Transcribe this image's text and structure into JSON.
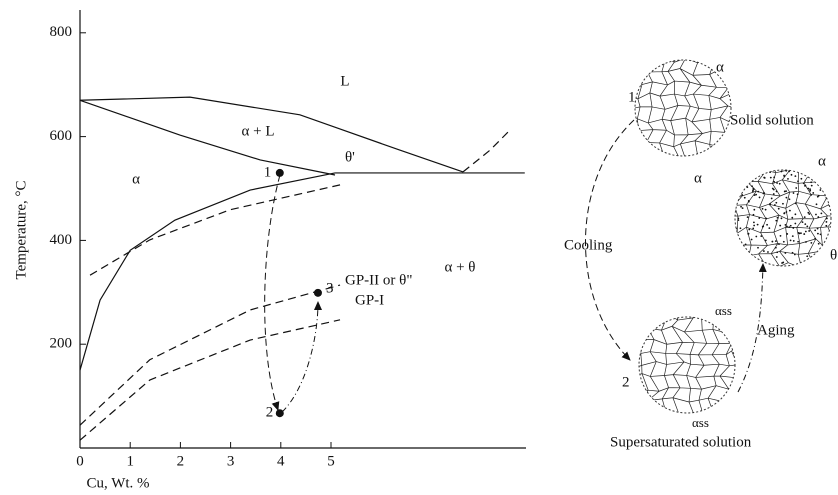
{
  "phase_diagram": {
    "y_label": "Temperature, °C",
    "x_label": "Cu, Wt. %",
    "xlim": [
      0,
      8.9
    ],
    "ylim": [
      0,
      845
    ],
    "xticks": [
      0,
      1,
      2,
      3,
      4,
      5
    ],
    "yticks": [
      200,
      400,
      600,
      800
    ],
    "curves": [
      {
        "style": "solid",
        "x": [
          0,
          2.19,
          4.38,
          6.37,
          7.63
        ],
        "y": [
          670,
          676,
          642,
          574,
          532
        ]
      },
      {
        "style": "solid",
        "x": [
          0,
          1.99,
          3.59,
          5.08
        ],
        "y": [
          670,
          603,
          555,
          526
        ]
      },
      {
        "style": "solid",
        "x": [
          5.08,
          8.86
        ],
        "y": [
          530,
          530
        ]
      },
      {
        "style": "solid",
        "x": [
          0,
          0.4,
          1.0,
          1.89,
          3.39,
          5.08
        ],
        "y": [
          150,
          285,
          381,
          439,
          497,
          530
        ]
      },
      {
        "style": "dashed",
        "x": [
          0.2,
          1.39,
          2.99,
          5.18
        ],
        "y": [
          333,
          401,
          459,
          507
        ]
      },
      {
        "style": "dashed",
        "x": [
          7.63,
          8.17,
          8.57
        ],
        "y": [
          532,
          574,
          613
        ]
      },
      {
        "style": "dashed",
        "x": [
          0,
          1.39,
          3.39,
          5.18
        ],
        "y": [
          44,
          170,
          266,
          314
        ]
      },
      {
        "style": "dashed",
        "x": [
          0,
          1.39,
          3.39,
          5.18
        ],
        "y": [
          15,
          131,
          208,
          247
        ]
      }
    ],
    "regions": [
      "L",
      "α + L",
      "α",
      "θ'",
      "α + θ",
      "GP-II or θ\"",
      "GP-I"
    ],
    "points": [
      {
        "label": "1",
        "x": 3.98,
        "y": 530
      },
      {
        "label": "2",
        "x": 3.98,
        "y": 67
      },
      {
        "label": "3",
        "x": 4.74,
        "y": 299
      }
    ]
  },
  "microstructures": {
    "solid_solution": {
      "stage": "1",
      "phase": "α",
      "phase_2": "α",
      "caption": "Solid solution"
    },
    "aged": {
      "phase": "α",
      "precipitate": "θ"
    },
    "supersaturated": {
      "stage": "2",
      "phase": "αss",
      "phase_2": "αss",
      "caption": "Supersaturated solution"
    },
    "cooling": "Cooling",
    "aging": "Aging"
  }
}
